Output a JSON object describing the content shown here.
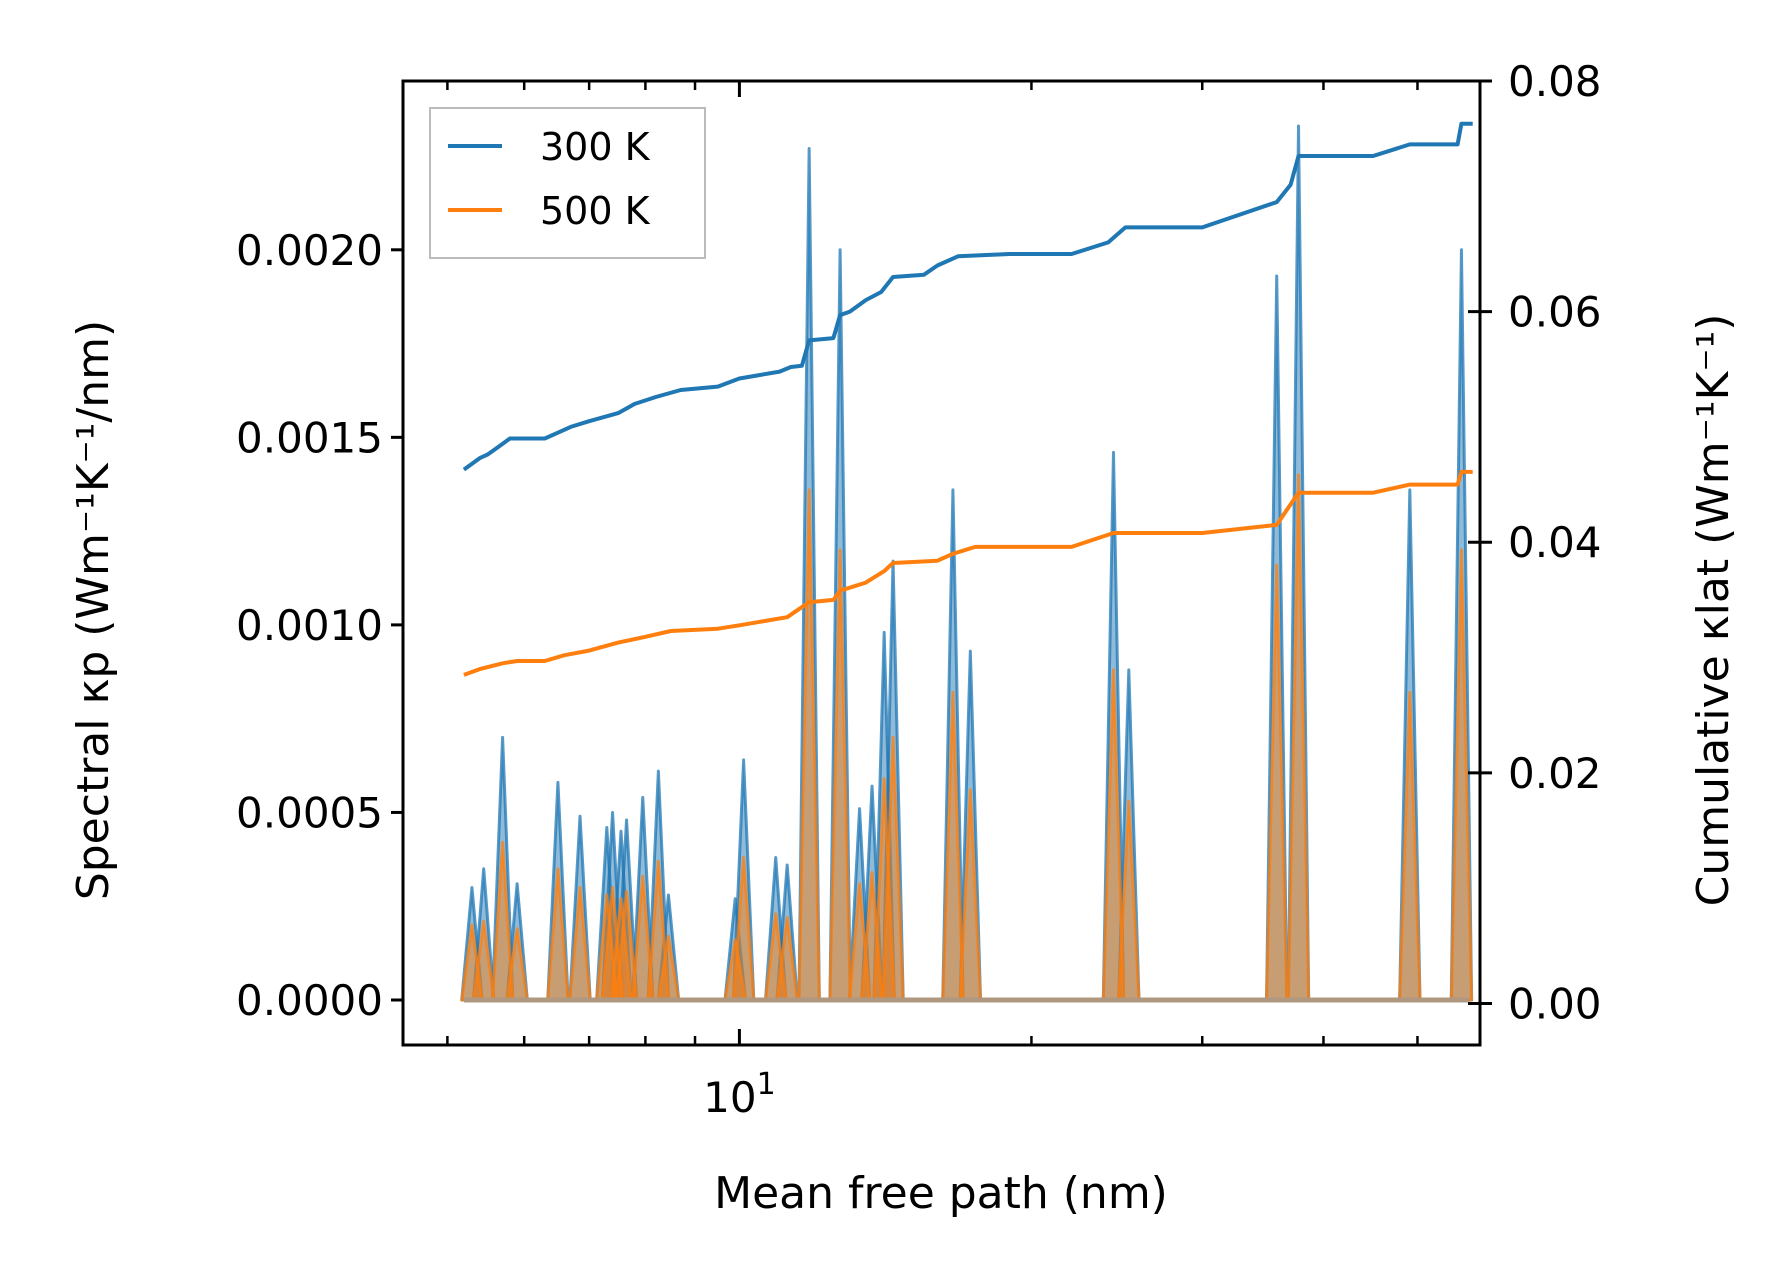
{
  "chart_data": {
    "type": "line",
    "x_scale": "log",
    "xlabel": "Mean free path (nm)",
    "ylabel_left": "Spectral κp (Wm⁻¹K⁻¹/nm)",
    "ylabel_right": "Cumulative κlat (Wm⁻¹K⁻¹)",
    "x_tick_label": "10^1",
    "xlim": [
      4.5,
      58
    ],
    "ylim_left": [
      -0.00012,
      0.00245
    ],
    "ylim_right": [
      -0.0036,
      0.08
    ],
    "yticks_left": [
      "0.0000",
      "0.0005",
      "0.0010",
      "0.0015",
      "0.0020"
    ],
    "yticks_right": [
      "0.00",
      "0.02",
      "0.04",
      "0.06",
      "0.08"
    ],
    "colors": {
      "s300": "#1f77b4",
      "s500": "#ff7f0e"
    },
    "legend": [
      {
        "name": "300 K",
        "color": "#1f77b4"
      },
      {
        "name": "500 K",
        "color": "#ff7f0e"
      }
    ],
    "spectral_300K": [
      [
        5.3,
        0.0003
      ],
      [
        5.45,
        0.00035
      ],
      [
        5.7,
        0.0007
      ],
      [
        5.9,
        0.00031
      ],
      [
        6.5,
        0.00058
      ],
      [
        6.85,
        0.00049
      ],
      [
        7.3,
        0.00046
      ],
      [
        7.4,
        0.0005
      ],
      [
        7.55,
        0.00045
      ],
      [
        7.65,
        0.00048
      ],
      [
        7.95,
        0.00054
      ],
      [
        8.25,
        0.00061
      ],
      [
        8.45,
        0.00028
      ],
      [
        9.9,
        0.00027
      ],
      [
        10.1,
        0.00064
      ],
      [
        10.9,
        0.00038
      ],
      [
        11.2,
        0.00036
      ],
      [
        11.8,
        0.00227
      ],
      [
        12.7,
        0.002
      ],
      [
        13.3,
        0.00051
      ],
      [
        13.7,
        0.00057
      ],
      [
        14.1,
        0.00098
      ],
      [
        14.4,
        0.00117
      ],
      [
        16.6,
        0.00136
      ],
      [
        17.3,
        0.00093
      ],
      [
        24.3,
        0.00146
      ],
      [
        25.2,
        0.00088
      ],
      [
        35.8,
        0.00193
      ],
      [
        37.7,
        0.00233
      ],
      [
        49.1,
        0.00136
      ],
      [
        55.5,
        0.002
      ]
    ],
    "spectral_500K": [
      [
        5.3,
        0.0002
      ],
      [
        5.45,
        0.00021
      ],
      [
        5.7,
        0.00042
      ],
      [
        5.9,
        0.00019
      ],
      [
        6.5,
        0.00035
      ],
      [
        6.85,
        0.0003
      ],
      [
        7.3,
        0.00028
      ],
      [
        7.4,
        0.0003
      ],
      [
        7.55,
        0.00027
      ],
      [
        7.65,
        0.00029
      ],
      [
        7.95,
        0.00033
      ],
      [
        8.25,
        0.00037
      ],
      [
        8.45,
        0.00017
      ],
      [
        9.9,
        0.00016
      ],
      [
        10.1,
        0.00038
      ],
      [
        10.9,
        0.00023
      ],
      [
        11.2,
        0.00022
      ],
      [
        11.8,
        0.00136
      ],
      [
        12.7,
        0.0012
      ],
      [
        13.3,
        0.00031
      ],
      [
        13.7,
        0.00034
      ],
      [
        14.1,
        0.00059
      ],
      [
        14.4,
        0.0007
      ],
      [
        16.6,
        0.00082
      ],
      [
        17.3,
        0.00056
      ],
      [
        24.3,
        0.00088
      ],
      [
        25.2,
        0.00053
      ],
      [
        35.8,
        0.00116
      ],
      [
        37.7,
        0.0014
      ],
      [
        49.1,
        0.00082
      ],
      [
        55.5,
        0.0012
      ]
    ],
    "cumulative_300K": [
      [
        5.2,
        0.0463
      ],
      [
        5.4,
        0.0473
      ],
      [
        5.5,
        0.0476
      ],
      [
        5.65,
        0.0483
      ],
      [
        5.8,
        0.049
      ],
      [
        6.0,
        0.049
      ],
      [
        6.3,
        0.049
      ],
      [
        6.5,
        0.0495
      ],
      [
        6.7,
        0.05
      ],
      [
        7.0,
        0.0505
      ],
      [
        7.5,
        0.0512
      ],
      [
        7.8,
        0.052
      ],
      [
        8.2,
        0.0526
      ],
      [
        8.7,
        0.0532
      ],
      [
        9.5,
        0.0535
      ],
      [
        10.0,
        0.0542
      ],
      [
        10.5,
        0.0545
      ],
      [
        11.0,
        0.0548
      ],
      [
        11.3,
        0.0552
      ],
      [
        11.6,
        0.0553
      ],
      [
        11.8,
        0.0575
      ],
      [
        12.5,
        0.0577
      ],
      [
        12.7,
        0.0597
      ],
      [
        13.0,
        0.06
      ],
      [
        13.5,
        0.061
      ],
      [
        14.0,
        0.0617
      ],
      [
        14.4,
        0.063
      ],
      [
        15.5,
        0.0632
      ],
      [
        16.0,
        0.064
      ],
      [
        16.8,
        0.0648
      ],
      [
        19.0,
        0.065
      ],
      [
        22.0,
        0.065
      ],
      [
        24.0,
        0.066
      ],
      [
        25.0,
        0.0673
      ],
      [
        30.0,
        0.0673
      ],
      [
        35.8,
        0.0695
      ],
      [
        37.0,
        0.071
      ],
      [
        37.7,
        0.0735
      ],
      [
        45.0,
        0.0735
      ],
      [
        49.1,
        0.0745
      ],
      [
        55.0,
        0.0745
      ],
      [
        55.5,
        0.0763
      ],
      [
        57.0,
        0.0763
      ]
    ],
    "cumulative_500K": [
      [
        5.2,
        0.0285
      ],
      [
        5.4,
        0.029
      ],
      [
        5.7,
        0.0295
      ],
      [
        5.9,
        0.0297
      ],
      [
        6.3,
        0.0297
      ],
      [
        6.6,
        0.0302
      ],
      [
        7.0,
        0.0306
      ],
      [
        7.5,
        0.0313
      ],
      [
        8.0,
        0.0318
      ],
      [
        8.5,
        0.0323
      ],
      [
        9.5,
        0.0325
      ],
      [
        10.0,
        0.0328
      ],
      [
        10.5,
        0.0331
      ],
      [
        11.2,
        0.0335
      ],
      [
        11.8,
        0.0348
      ],
      [
        12.5,
        0.035
      ],
      [
        12.7,
        0.0358
      ],
      [
        13.5,
        0.0365
      ],
      [
        14.1,
        0.0375
      ],
      [
        14.4,
        0.0382
      ],
      [
        16.0,
        0.0384
      ],
      [
        16.6,
        0.039
      ],
      [
        17.5,
        0.0396
      ],
      [
        22.0,
        0.0396
      ],
      [
        24.3,
        0.0408
      ],
      [
        30.0,
        0.0408
      ],
      [
        35.8,
        0.0415
      ],
      [
        37.7,
        0.0443
      ],
      [
        45.0,
        0.0443
      ],
      [
        49.1,
        0.045
      ],
      [
        55.0,
        0.045
      ],
      [
        55.5,
        0.0461
      ],
      [
        57.0,
        0.0461
      ]
    ]
  }
}
